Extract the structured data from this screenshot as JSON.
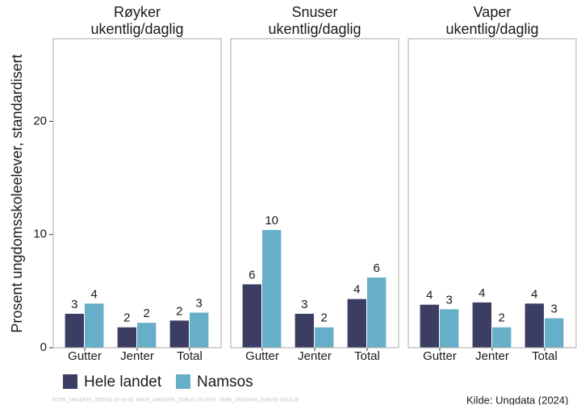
{
  "y_axis": {
    "label": "Prosent ungdomsskoleelever, standardisert",
    "ylim": [
      0,
      27.3
    ],
    "yticks": [
      0,
      10,
      20
    ]
  },
  "chart_data": [
    {
      "type": "bar",
      "title": [
        "Røyker",
        "ukentlig/daglig"
      ],
      "categories": [
        "Gutter",
        "Jenter",
        "Total"
      ],
      "series": [
        {
          "name": "Hele landet",
          "color": "#3b3d63",
          "values": [
            3.0,
            1.8,
            2.4
          ],
          "value_labels": [
            "3",
            "2",
            "2"
          ]
        },
        {
          "name": "Namsos",
          "color": "#67afc8",
          "values": [
            3.9,
            2.2,
            3.1
          ],
          "value_labels": [
            "4",
            "2",
            "3"
          ]
        }
      ]
    },
    {
      "type": "bar",
      "title": [
        "Snuser",
        "ukentlig/daglig"
      ],
      "categories": [
        "Gutter",
        "Jenter",
        "Total"
      ],
      "series": [
        {
          "name": "Hele landet",
          "color": "#3b3d63",
          "values": [
            5.6,
            3.0,
            4.3
          ],
          "value_labels": [
            "6",
            "3",
            "4"
          ]
        },
        {
          "name": "Namsos",
          "color": "#67afc8",
          "values": [
            10.4,
            1.8,
            6.2
          ],
          "value_labels": [
            "10",
            "2",
            "6"
          ]
        }
      ]
    },
    {
      "type": "bar",
      "title": [
        "Vaper",
        "ukentlig/daglig"
      ],
      "categories": [
        "Gutter",
        "Jenter",
        "Total"
      ],
      "series": [
        {
          "name": "Hele landet",
          "color": "#3b3d63",
          "values": [
            3.8,
            4.0,
            3.9
          ],
          "value_labels": [
            "4",
            "4",
            "4"
          ]
        },
        {
          "name": "Namsos",
          "color": "#67afc8",
          "values": [
            3.4,
            1.8,
            2.6
          ],
          "value_labels": [
            "3",
            "2",
            "3"
          ]
        }
      ]
    }
  ],
  "footnote": "ROYK_UNGDATA_2026-01-20-10-03, SNUS_UNGDATA_2026-01-20-10-07, VAPE_UNGDATA_2026-03-10-13-18",
  "source": "Kilde: Ungdata (2024)"
}
